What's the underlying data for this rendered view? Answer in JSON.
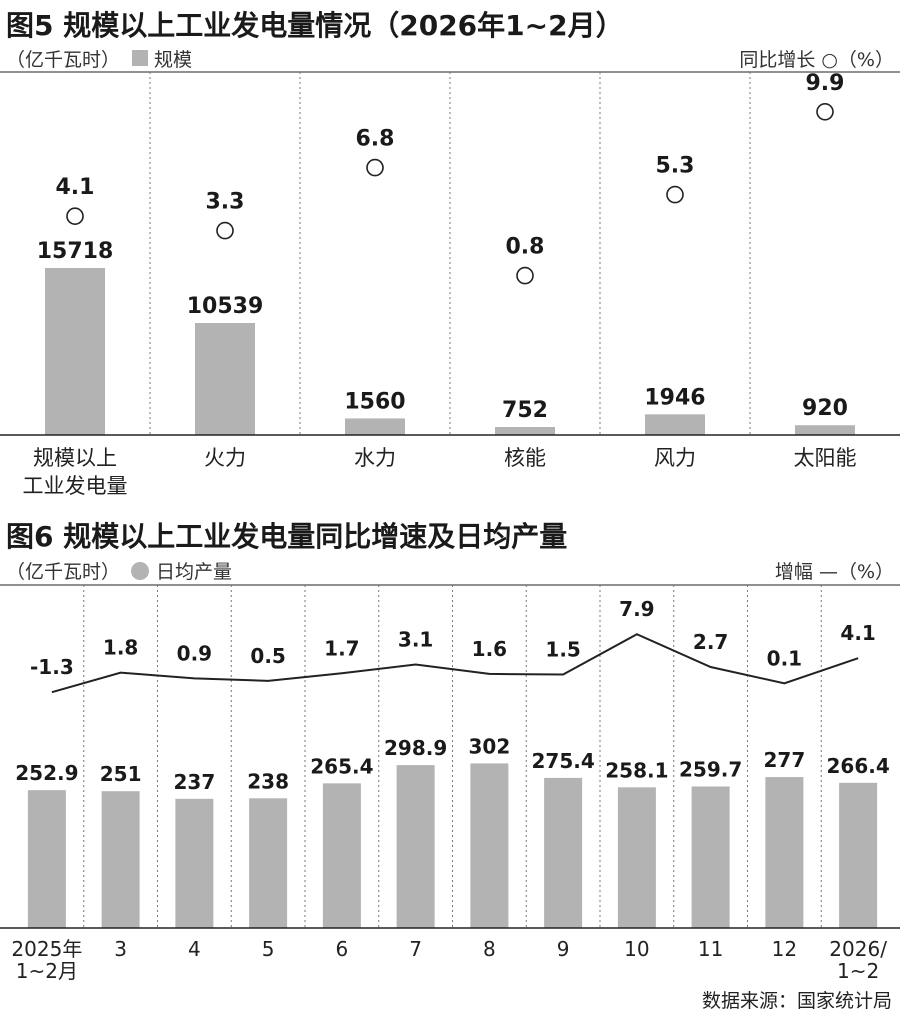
{
  "chart_data": [
    {
      "type": "bar",
      "title": "图5 规模以上工业发电量情况（2026年1~2月）",
      "unit_left": "（亿千瓦时）",
      "legend_bar": "规模",
      "legend_right": "同比增长 ○（%）",
      "categories": [
        "规模以上工业发电量",
        "火力",
        "水力",
        "核能",
        "风力",
        "太阳能"
      ],
      "category_lines": [
        [
          "规模以上",
          "工业发电量"
        ],
        [
          "火力"
        ],
        [
          "水力"
        ],
        [
          "核能"
        ],
        [
          "风力"
        ],
        [
          "太阳能"
        ]
      ],
      "series": [
        {
          "name": "规模",
          "values": [
            15718,
            10539,
            1560,
            752,
            1946,
            920
          ]
        },
        {
          "name": "同比增长",
          "values": [
            4.1,
            3.3,
            6.8,
            0.8,
            5.3,
            9.9
          ]
        }
      ],
      "bar_labels": [
        "15718",
        "10539",
        "1560",
        "752",
        "1946",
        "920"
      ],
      "growth_labels": [
        "4.1",
        "3.3",
        "6.8",
        "0.8",
        "5.3",
        "9.9"
      ],
      "grid_vertical_dotted": true,
      "colors": {
        "bar": "#b3b3b3",
        "marker": "#222222"
      }
    },
    {
      "type": "bar",
      "title": "图6 规模以上工业发电量同比增速及日均产量",
      "unit_left": "（亿千瓦时）",
      "legend_bar": "日均产量",
      "legend_right": "增幅 —（%）",
      "categories": [
        "2025年1~2月",
        "3",
        "4",
        "5",
        "6",
        "7",
        "8",
        "9",
        "10",
        "11",
        "12",
        "2026/1~2"
      ],
      "category_lines": [
        [
          "2025年",
          "1~2月"
        ],
        [
          "3"
        ],
        [
          "4"
        ],
        [
          "5"
        ],
        [
          "6"
        ],
        [
          "7"
        ],
        [
          "8"
        ],
        [
          "9"
        ],
        [
          "10"
        ],
        [
          "11"
        ],
        [
          "12"
        ],
        [
          "2026/",
          "1~2"
        ]
      ],
      "series": [
        {
          "name": "日均产量",
          "values": [
            252.9,
            251,
            237,
            238,
            265.4,
            298.9,
            302,
            275.4,
            258.1,
            259.7,
            277,
            266.4
          ]
        },
        {
          "name": "增幅",
          "values": [
            -1.3,
            1.8,
            0.9,
            0.5,
            1.7,
            3.1,
            1.6,
            1.5,
            7.9,
            2.7,
            0.1,
            4.1
          ]
        }
      ],
      "bar_labels": [
        "252.9",
        "251",
        "237",
        "238",
        "265.4",
        "298.9",
        "302",
        "275.4",
        "258.1",
        "259.7",
        "277",
        "266.4"
      ],
      "line_labels": [
        "-1.3",
        "1.8",
        "0.9",
        "0.5",
        "1.7",
        "3.1",
        "1.6",
        "1.5",
        "7.9",
        "2.7",
        "0.1",
        "4.1"
      ],
      "grid_vertical_dotted": true,
      "colors": {
        "bar": "#b3b3b3",
        "line": "#222222"
      }
    }
  ],
  "source": "数据来源：国家统计局"
}
